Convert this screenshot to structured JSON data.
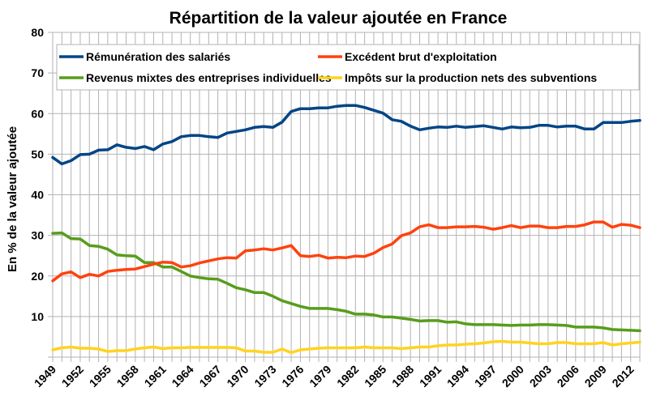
{
  "chart_data": {
    "type": "line",
    "title": "Répartition de la valeur ajoutée en France",
    "xlabel": "",
    "ylabel": "En % de la valeur ajoutée",
    "ylim": [
      0,
      80
    ],
    "yticks": [
      10,
      20,
      30,
      40,
      50,
      60,
      70,
      80
    ],
    "xlim": [
      1949,
      2013
    ],
    "xtick_labels": [
      "1949",
      "1952",
      "1955",
      "1958",
      "1961",
      "1964",
      "1967",
      "1970",
      "1973",
      "1976",
      "1979",
      "1982",
      "1985",
      "1988",
      "1991",
      "1994",
      "1997",
      "2000",
      "2003",
      "2006",
      "2009",
      "2012"
    ],
    "grid": true,
    "legend_position": "top",
    "x": [
      1949,
      1950,
      1951,
      1952,
      1953,
      1954,
      1955,
      1956,
      1957,
      1958,
      1959,
      1960,
      1961,
      1962,
      1963,
      1964,
      1965,
      1966,
      1967,
      1968,
      1969,
      1970,
      1971,
      1972,
      1973,
      1974,
      1975,
      1976,
      1977,
      1978,
      1979,
      1980,
      1981,
      1982,
      1983,
      1984,
      1985,
      1986,
      1987,
      1988,
      1989,
      1990,
      1991,
      1992,
      1993,
      1994,
      1995,
      1996,
      1997,
      1998,
      1999,
      2000,
      2001,
      2002,
      2003,
      2004,
      2005,
      2006,
      2007,
      2008,
      2009,
      2010,
      2011,
      2012,
      2013
    ],
    "series": [
      {
        "name": "Rémunération des salariés",
        "color": "#004586",
        "values": [
          49.2,
          47.6,
          48.4,
          49.9,
          50.0,
          51.0,
          51.1,
          52.3,
          51.7,
          51.4,
          51.9,
          51.1,
          52.5,
          53.1,
          54.3,
          54.6,
          54.6,
          54.3,
          54.1,
          55.2,
          55.6,
          56.0,
          56.6,
          56.8,
          56.6,
          57.9,
          60.5,
          61.2,
          61.2,
          61.4,
          61.4,
          61.8,
          62.0,
          62.0,
          61.5,
          60.8,
          60.1,
          58.5,
          58.1,
          56.9,
          56.0,
          56.4,
          56.7,
          56.6,
          56.9,
          56.6,
          56.8,
          57.0,
          56.6,
          56.2,
          56.7,
          56.5,
          56.6,
          57.1,
          57.1,
          56.7,
          56.9,
          56.9,
          56.2,
          56.2,
          57.8,
          57.8,
          57.8,
          58.1,
          58.3
        ]
      },
      {
        "name": "Excédent brut d'exploitation",
        "color": "#ff420e",
        "values": [
          18.8,
          20.5,
          21.0,
          19.6,
          20.4,
          20.0,
          21.1,
          21.4,
          21.6,
          21.7,
          22.3,
          22.9,
          23.4,
          23.3,
          22.2,
          22.5,
          23.2,
          23.7,
          24.2,
          24.5,
          24.4,
          26.2,
          26.4,
          26.7,
          26.4,
          26.9,
          27.5,
          25.0,
          24.8,
          25.1,
          24.4,
          24.6,
          24.5,
          24.9,
          24.8,
          25.6,
          27.0,
          27.9,
          29.9,
          30.6,
          32.1,
          32.6,
          31.9,
          31.9,
          32.1,
          32.1,
          32.2,
          32.0,
          31.5,
          31.9,
          32.4,
          31.9,
          32.3,
          32.3,
          31.9,
          31.9,
          32.2,
          32.2,
          32.6,
          33.3,
          33.3,
          32.0,
          32.7,
          32.5,
          31.9
        ]
      },
      {
        "name": "Revenus mixtes des entreprises individuelles",
        "color": "#579d1c",
        "values": [
          30.5,
          30.6,
          29.2,
          29.1,
          27.5,
          27.3,
          26.6,
          25.2,
          25.0,
          24.9,
          23.3,
          23.3,
          22.2,
          22.2,
          21.1,
          20.0,
          19.6,
          19.3,
          19.2,
          18.2,
          17.1,
          16.6,
          15.9,
          15.9,
          15.0,
          13.9,
          13.2,
          12.5,
          12.0,
          12.0,
          12.0,
          11.7,
          11.3,
          10.6,
          10.6,
          10.4,
          9.9,
          9.9,
          9.6,
          9.3,
          8.9,
          9.0,
          9.0,
          8.6,
          8.7,
          8.2,
          8.0,
          8.0,
          8.0,
          7.9,
          7.8,
          7.9,
          7.9,
          8.0,
          8.0,
          7.9,
          7.8,
          7.4,
          7.4,
          7.4,
          7.2,
          6.8,
          6.7,
          6.6,
          6.5
        ]
      },
      {
        "name": "Impôts sur la production nets des subventions",
        "color": "#ffd320",
        "values": [
          1.8,
          2.3,
          2.5,
          2.2,
          2.2,
          2.0,
          1.4,
          1.6,
          1.6,
          2.0,
          2.3,
          2.5,
          2.1,
          2.3,
          2.3,
          2.4,
          2.4,
          2.4,
          2.4,
          2.4,
          2.3,
          1.5,
          1.5,
          1.2,
          1.2,
          2.0,
          1.1,
          1.8,
          2.0,
          2.2,
          2.3,
          2.3,
          2.3,
          2.3,
          2.5,
          2.3,
          2.3,
          2.3,
          2.1,
          2.3,
          2.5,
          2.5,
          2.8,
          3.0,
          3.0,
          3.2,
          3.3,
          3.5,
          3.8,
          3.9,
          3.7,
          3.7,
          3.5,
          3.3,
          3.3,
          3.6,
          3.6,
          3.3,
          3.3,
          3.3,
          3.6,
          3.0,
          3.3,
          3.5,
          3.7
        ]
      }
    ]
  }
}
